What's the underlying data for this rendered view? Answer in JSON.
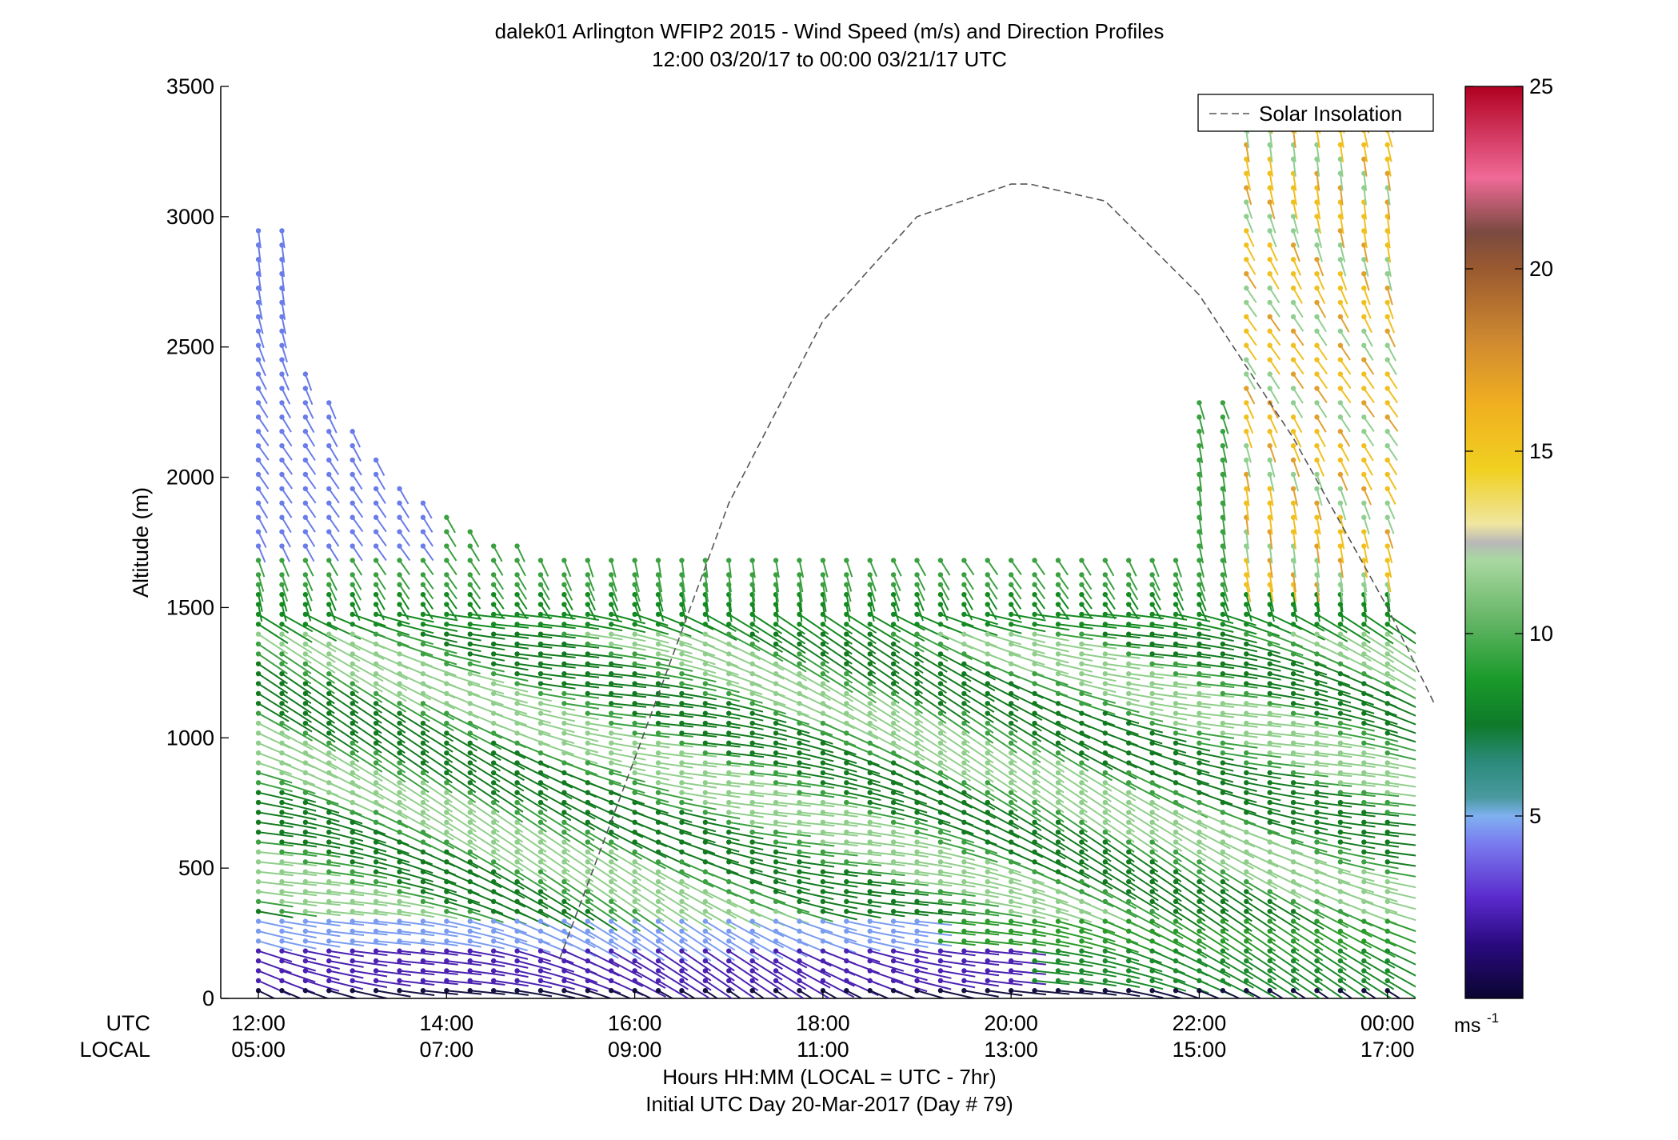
{
  "chart_data": {
    "type": "scatter",
    "title": "dalek01 Arlington WFIP2 2015 - Wind Speed (m/s) and Direction Profiles",
    "subtitle": "12:00 03/20/17 to 00:00 03/21/17  UTC",
    "ylabel": "Altitude (m)",
    "xlabel": "Hours HH:MM  (LOCAL = UTC - 7hr)",
    "xlabel2": "Initial UTC Day 20-Mar-2017 (Day # 79)",
    "utc_row_label": "UTC",
    "local_row_label": "LOCAL",
    "ylim": [
      0,
      3500
    ],
    "y_ticks": [
      "0",
      "500",
      "1000",
      "1500",
      "2000",
      "2500",
      "3000",
      "3500"
    ],
    "x_ticks_utc": [
      "12:00",
      "14:00",
      "16:00",
      "18:00",
      "20:00",
      "22:00",
      "00:00"
    ],
    "x_ticks_local": [
      "05:00",
      "07:00",
      "09:00",
      "11:00",
      "13:00",
      "15:00",
      "17:00"
    ],
    "x_range_hours": [
      11.6,
      24.3
    ],
    "legend": {
      "entries": [
        "Solar Insolation"
      ],
      "position": "top-right"
    },
    "colorbar": {
      "ticks": [
        "5",
        "10",
        "15",
        "20",
        "25"
      ],
      "range": [
        0,
        25
      ],
      "unit_label": "ms",
      "unit_superscript": "-1"
    },
    "solar_insolation": {
      "hours": [
        15.2,
        16.0,
        17.0,
        18.0,
        19.0,
        20.0,
        20.2,
        21.0,
        22.0,
        23.0,
        24.0,
        24.5
      ],
      "altitude": [
        150,
        920,
        1900,
        2600,
        3000,
        3125,
        3125,
        3060,
        2700,
        2150,
        1500,
        1130
      ]
    },
    "series": [
      {
        "values": [
          {
            "x": 12.0,
            "y": 1100
          },
          {
            "x": 12.0,
            "y": 1700
          },
          {
            "x": 12.0,
            "y": 2600
          },
          {
            "x": 14.0,
            "y": 2000
          },
          {
            "x": 16.0,
            "y": 1700
          },
          {
            "x": 18.0,
            "y": 1700
          },
          {
            "x": 20.0,
            "y": 1700
          },
          {
            "x": 22.0,
            "y": 1700
          },
          {
            "x": 24.0,
            "y": 1600
          }
        ]
      }
    ]
  }
}
